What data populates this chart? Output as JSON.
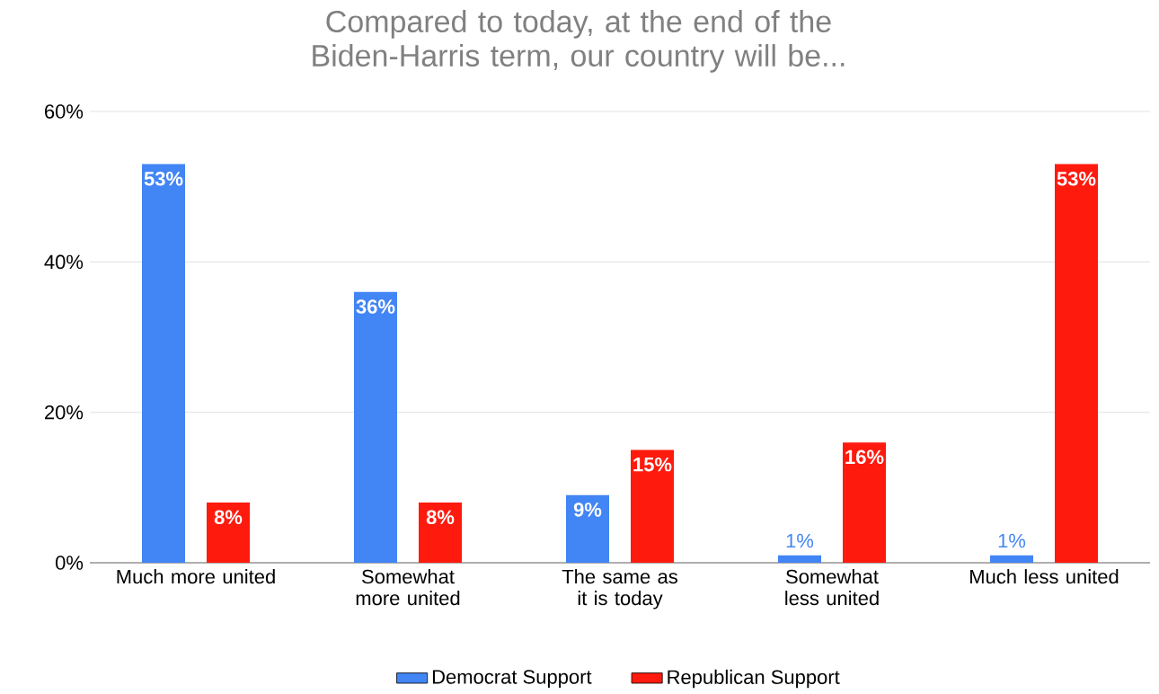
{
  "chart_data": {
    "type": "bar",
    "title": "Compared to today, at the end of the Biden-Harris term, our country will be...",
    "categories": [
      "Much more united",
      "Somewhat more united",
      "The same as it is today",
      "Somewhat less united",
      "Much less united"
    ],
    "series": [
      {
        "name": "Democrat Support",
        "color": "#4285f4",
        "values": [
          53,
          36,
          9,
          1,
          1
        ],
        "value_labels": [
          "53%",
          "36%",
          "9%",
          "1%",
          "1%"
        ]
      },
      {
        "name": "Republican Support",
        "color": "#ff1a0e",
        "values": [
          8,
          8,
          15,
          16,
          53
        ],
        "value_labels": [
          "8%",
          "8%",
          "15%",
          "16%",
          "53%"
        ]
      }
    ],
    "ylim": [
      0,
      60
    ],
    "yticks": [
      {
        "value": 0,
        "label": "0%"
      },
      {
        "value": 20,
        "label": "20%"
      },
      {
        "value": 40,
        "label": "40%"
      },
      {
        "value": 60,
        "label": "60%"
      }
    ],
    "grid": "y",
    "legend": "bottom"
  }
}
